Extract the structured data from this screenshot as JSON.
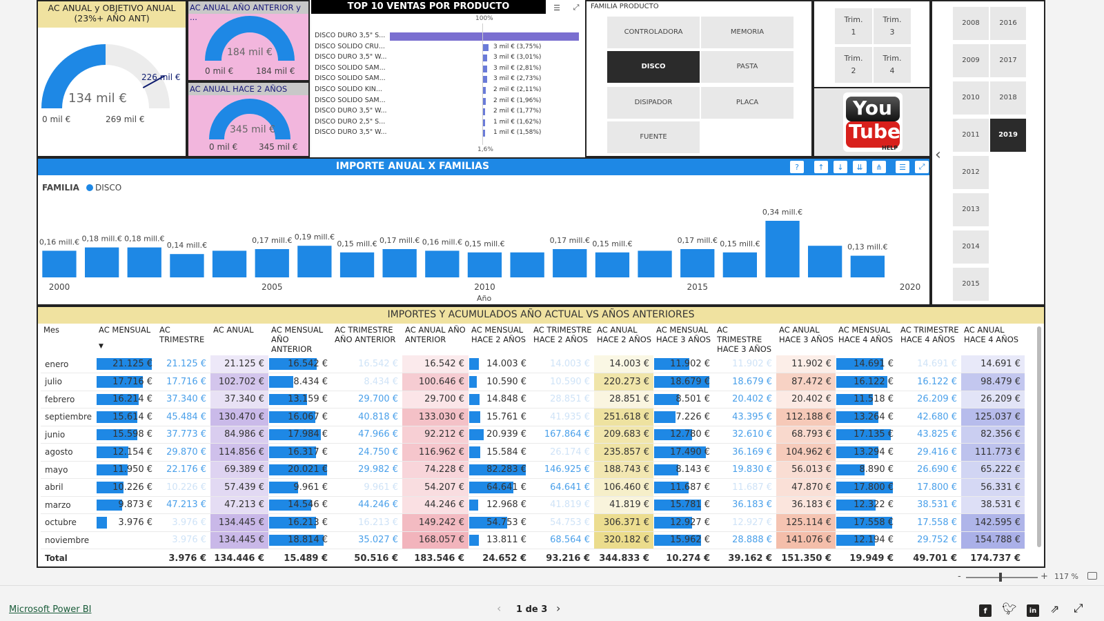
{
  "gauge1": {
    "title": "AC ANUAL y OBJETIVO ANUAL (23%+ AÑO ANT)",
    "value": "134 mil €",
    "target": "226 mil €",
    "min": "0 mil €",
    "max": "269 mil €",
    "fraction": 0.5,
    "target_fraction": 0.84
  },
  "gauge2": {
    "title": "AC ANUAL AÑO ANTERIOR y ...",
    "value": "184 mil €",
    "min": "0 mil €",
    "max": "184 mil €",
    "fraction": 1.0
  },
  "gauge3": {
    "title": "AC ANUAL HACE 2 AÑOS",
    "value": "345 mil €",
    "min": "0 mil €",
    "max": "345 mil €",
    "fraction": 1.0
  },
  "top10": {
    "title": "TOP 10 VENTAS POR PRODUCTO",
    "top_label": "100%",
    "bottom_value": "1,6%",
    "items": [
      {
        "name": "DISCO DURO 3,5\" S...",
        "label": "",
        "pct": 100
      },
      {
        "name": "DISCO SOLIDO CRU...",
        "label": "3 mil € (3,75%)",
        "pct": 3.75
      },
      {
        "name": "DISCO DURO 3,5\" W...",
        "label": "3 mil € (3,01%)",
        "pct": 3.01
      },
      {
        "name": "DISCO SOLIDO SAM...",
        "label": "3 mil € (2,81%)",
        "pct": 2.81
      },
      {
        "name": "DISCO SOLIDO SAM...",
        "label": "3 mil € (2,73%)",
        "pct": 2.73
      },
      {
        "name": "DISCO SOLIDO KIN...",
        "label": "2 mil € (2,11%)",
        "pct": 2.11
      },
      {
        "name": "DISCO SOLIDO SAM...",
        "label": "2 mil € (1,96%)",
        "pct": 1.96
      },
      {
        "name": "DISCO DURO 3,5\" W...",
        "label": "2 mil € (1,77%)",
        "pct": 1.77
      },
      {
        "name": "DISCO DURO 2,5\" S...",
        "label": "1 mil € (1,62%)",
        "pct": 1.62
      },
      {
        "name": "DISCO DURO 3,5\" W...",
        "label": "1 mil € (1,58%)",
        "pct": 1.58
      }
    ]
  },
  "familia": {
    "title": "FAMILIA PRODUCTO",
    "items": [
      {
        "label": "CONTROLADORA",
        "selected": false
      },
      {
        "label": "MEMORIA",
        "selected": false
      },
      {
        "label": "DISCO",
        "selected": true
      },
      {
        "label": "PASTA",
        "selected": false
      },
      {
        "label": "DISIPADOR",
        "selected": false
      },
      {
        "label": "PLACA",
        "selected": false
      },
      {
        "label": "FUENTE",
        "selected": false
      }
    ]
  },
  "trim": {
    "items": [
      "Trim. 1",
      "Trim. 3",
      "Trim. 2",
      "Trim. 4"
    ]
  },
  "youtube": {
    "line1": "You",
    "line2": "Tube",
    "line3": "HELP"
  },
  "years": {
    "items": [
      {
        "label": "2008",
        "selected": false
      },
      {
        "label": "2016",
        "selected": false
      },
      {
        "label": "2009",
        "selected": false
      },
      {
        "label": "2017",
        "selected": false
      },
      {
        "label": "2010",
        "selected": false
      },
      {
        "label": "2018",
        "selected": false
      },
      {
        "label": "2011",
        "selected": false
      },
      {
        "label": "2019",
        "selected": true
      },
      {
        "label": "2012",
        "selected": false
      },
      {
        "label": "2013",
        "selected": false
      },
      {
        "label": "2014",
        "selected": false
      },
      {
        "label": "2015",
        "selected": false
      }
    ]
  },
  "chart_data": {
    "type": "bar",
    "title": "IMPORTE ANUAL X FAMILIAS",
    "legend_title": "FAMILIA",
    "legend_item": "DISCO",
    "xlabel": "Año",
    "x_ticks": [
      "2000",
      "2005",
      "2010",
      "2015",
      "2020"
    ],
    "x_range": [
      2000,
      2020
    ],
    "categories": [
      2000,
      2001,
      2002,
      2003,
      2004,
      2005,
      2006,
      2007,
      2008,
      2009,
      2010,
      2011,
      2012,
      2013,
      2014,
      2015,
      2016,
      2017,
      2018,
      2019
    ],
    "values": [
      0.16,
      0.18,
      0.18,
      0.14,
      0.16,
      0.17,
      0.19,
      0.15,
      0.17,
      0.16,
      0.15,
      0.15,
      0.17,
      0.15,
      0.16,
      0.17,
      0.15,
      0.34,
      0.19,
      0.13
    ],
    "data_labels": [
      "0,16 mill.€",
      "0,18 mill.€",
      "0,18 mill.€",
      "0,14 mill.€",
      "",
      "0,17 mill.€",
      "0,19 mill.€",
      "0,15 mill.€",
      "0,17 mill.€",
      "0,16 mill.€",
      "0,15 mill.€",
      "",
      "0,17 mill.€",
      "0,15 mill.€",
      "",
      "0,17 mill.€",
      "0,15 mill.€",
      "0,34 mill.€",
      "",
      "0,13 mill.€"
    ],
    "y_range": [
      0,
      0.34
    ]
  },
  "table": {
    "title": "IMPORTES Y ACUMULADOS AÑO ACTUAL VS AÑOS ANTERIORES",
    "columns": [
      "Mes",
      "AC MENSUAL",
      "AC TRIMESTRE",
      "AC ANUAL",
      "AC MENSUAL AÑO ANTERIOR",
      "AC TRIMESTRE AÑO ANTERIOR",
      "AC ANUAL AÑO ANTERIOR",
      "AC MENSUAL HACE 2 AÑOS",
      "AC TRIMESTRE HACE 2 AÑOS",
      "AC ANUAL HACE 2 AÑOS",
      "AC MENSUAL HACE 3 AÑOS",
      "AC TRIMESTRE HACE 3 AÑOS",
      "AC ANUAL HACE 3 AÑOS",
      "AC MENSUAL HACE 4 AÑOS",
      "AC TRIMESTRE HACE 4 AÑOS",
      "AC ANUAL HACE 4 AÑOS"
    ],
    "rows": [
      [
        "enero",
        "21.125 €",
        "21.125 €",
        "21.125 €",
        "16.542 €",
        "16.542 €",
        "16.542 €",
        "14.003 €",
        "14.003 €",
        "14.003 €",
        "11.902 €",
        "11.902 €",
        "11.902 €",
        "14.691 €",
        "14.691 €",
        "14.691 €"
      ],
      [
        "julio",
        "17.716 €",
        "17.716 €",
        "102.702 €",
        "8.434 €",
        "8.434 €",
        "100.646 €",
        "10.590 €",
        "10.590 €",
        "220.273 €",
        "18.679 €",
        "18.679 €",
        "87.472 €",
        "16.122 €",
        "16.122 €",
        "98.479 €"
      ],
      [
        "febrero",
        "16.214 €",
        "37.340 €",
        "37.340 €",
        "13.159 €",
        "29.700 €",
        "29.700 €",
        "14.848 €",
        "28.851 €",
        "28.851 €",
        "8.501 €",
        "20.402 €",
        "20.402 €",
        "11.518 €",
        "26.209 €",
        "26.209 €"
      ],
      [
        "septiembre",
        "15.614 €",
        "45.484 €",
        "130.470 €",
        "16.067 €",
        "40.818 €",
        "133.030 €",
        "15.761 €",
        "41.935 €",
        "251.618 €",
        "7.226 €",
        "43.395 €",
        "112.188 €",
        "13.264 €",
        "42.680 €",
        "125.037 €"
      ],
      [
        "junio",
        "15.598 €",
        "37.773 €",
        "84.986 €",
        "17.984 €",
        "47.966 €",
        "92.212 €",
        "20.939 €",
        "167.864 €",
        "209.683 €",
        "12.780 €",
        "32.610 €",
        "68.793 €",
        "17.135 €",
        "43.825 €",
        "82.356 €"
      ],
      [
        "agosto",
        "12.154 €",
        "29.870 €",
        "114.856 €",
        "16.317 €",
        "24.750 €",
        "116.962 €",
        "15.584 €",
        "26.174 €",
        "235.857 €",
        "17.490 €",
        "36.169 €",
        "104.962 €",
        "13.294 €",
        "29.416 €",
        "111.773 €"
      ],
      [
        "mayo",
        "11.950 €",
        "22.176 €",
        "69.389 €",
        "20.021 €",
        "29.982 €",
        "74.228 €",
        "82.283 €",
        "146.925 €",
        "188.743 €",
        "8.143 €",
        "19.830 €",
        "56.013 €",
        "8.890 €",
        "26.690 €",
        "65.222 €"
      ],
      [
        "abril",
        "10.226 €",
        "10.226 €",
        "57.439 €",
        "9.961 €",
        "9.961 €",
        "54.207 €",
        "64.641 €",
        "64.641 €",
        "106.460 €",
        "11.687 €",
        "11.687 €",
        "47.870 €",
        "17.800 €",
        "17.800 €",
        "56.331 €"
      ],
      [
        "marzo",
        "9.873 €",
        "47.213 €",
        "47.213 €",
        "14.546 €",
        "44.246 €",
        "44.246 €",
        "12.968 €",
        "41.819 €",
        "41.819 €",
        "15.781 €",
        "36.183 €",
        "36.183 €",
        "12.322 €",
        "38.531 €",
        "38.531 €"
      ],
      [
        "octubre",
        "3.976 €",
        "3.976 €",
        "134.445 €",
        "16.213 €",
        "16.213 €",
        "149.242 €",
        "54.753 €",
        "54.753 €",
        "306.371 €",
        "12.927 €",
        "12.927 €",
        "125.114 €",
        "17.558 €",
        "17.558 €",
        "142.595 €"
      ],
      [
        "noviembre",
        "",
        "3.976 €",
        "134.445 €",
        "18.814 €",
        "35.027 €",
        "168.057 €",
        "13.811 €",
        "68.564 €",
        "320.182 €",
        "15.962 €",
        "28.888 €",
        "141.076 €",
        "12.194 €",
        "29.752 €",
        "154.788 €"
      ]
    ],
    "total": [
      "Total",
      "",
      "3.976 €",
      "134.446 €",
      "15.489 €",
      "50.516 €",
      "183.546 €",
      "24.652 €",
      "93.216 €",
      "344.833 €",
      "10.274 €",
      "39.162 €",
      "151.350 €",
      "19.949 €",
      "49.701 €",
      "174.737 €"
    ]
  },
  "colors": {
    "accent": "#1e88e5",
    "gauge_bg": "#ececec",
    "title_yellow": "#f0e2a0",
    "title_pink": "#f2b6dd",
    "purple_band": "#c9b8e8",
    "pink_band": "#f2c9cf",
    "yellow_band": "#efe0a0",
    "salmon_band": "#f6ccb8",
    "lavender_band": "#bcc0ec"
  },
  "footer": {
    "brand": "Microsoft Power BI",
    "pages": "1 de 3",
    "zoom": "117 %"
  }
}
